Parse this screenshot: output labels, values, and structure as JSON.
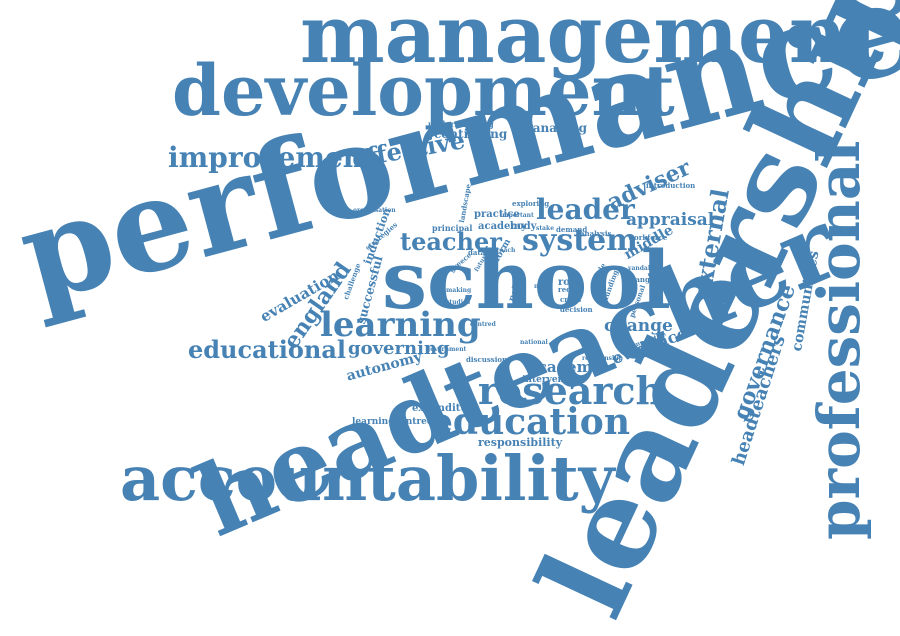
{
  "theme": {
    "word_color": "#4682b4",
    "background": "#ffffff"
  },
  "words": {
    "performance": "performance",
    "leadership": "leadership",
    "headteacher": "headteacher",
    "school": "school",
    "management": "management",
    "development": "development",
    "accountability": "accountability",
    "professional": "professional",
    "research": "research",
    "education": "education",
    "learning": "learning",
    "improvement": "improvement",
    "effective": "effective",
    "educational": "educational",
    "system": "system",
    "leader": "leader",
    "teacher": "teacher",
    "adviser": "adviser",
    "appraisal": "appraisal",
    "external": "external",
    "england": "england",
    "evaluation": "evaluation",
    "governance": "governance",
    "headteachers": "headteachers",
    "communities": "communities",
    "governing": "governing",
    "autonomy": "autonomy",
    "change": "change",
    "evidence": "evidence",
    "academie": "academie",
    "middle": "middle",
    "continuing": "continuing",
    "managing": "managing",
    "understanding": "understanding",
    "expenditure": "expenditure",
    "learningcentred": "learningcentred",
    "responsibility": "responsibility",
    "intervention": "intervention",
    "successful": "successful",
    "induction": "induction",
    "academy": "academy",
    "practice": "practice",
    "principal": "principal",
    "reform": "reform",
    "policy": "policy",
    "body": "body",
    "role": "role",
    "introduction": "introduction",
    "workforce": "workforce",
    "landscape": "landscape",
    "exploring": "exploring",
    "strategies": "strategies",
    "organisation": "organisation",
    "challenge": "challenge",
    "demand": "demand",
    "analysis": "analysis",
    "data": "data",
    "greece": "greece",
    "crisis": "crisis",
    "decision": "decision",
    "discussion": "discussion",
    "recent": "recent",
    "relationship": "relationship",
    "comparative": "comparative",
    "vandalism": "vandalism",
    "changing": "changing",
    "personal": "personal",
    "funding": "funding",
    "article": "article",
    "studies": "studies",
    "making": "making",
    "government": "government",
    "important": "important",
    "centred": "centred",
    "stake": "stake",
    "need": "need",
    "future": "future",
    "approach": "approach",
    "national": "national"
  }
}
